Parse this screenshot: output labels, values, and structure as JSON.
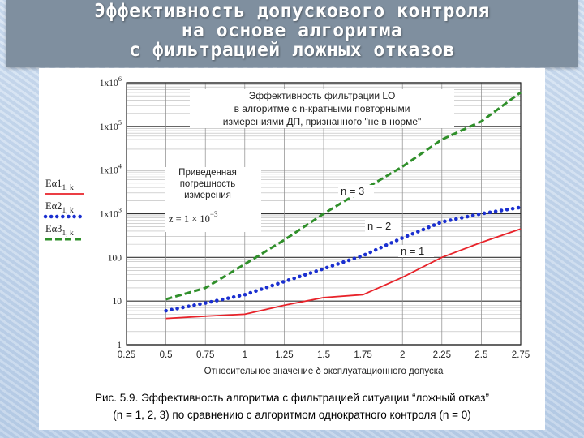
{
  "slide": {
    "title_lines": [
      "Эффективность допускового контроля",
      "на основе алгоритма",
      "с фильтрацией ложных отказов"
    ]
  },
  "caption": {
    "line1": "Рис. 5.9. Эффективность алгоритма с фильтрацией ситуации “ложный отказ”",
    "line2": "(n = 1, 2, 3) по сравнению с алгоритмом однократного контроля (n = 0)"
  },
  "chart_data": {
    "type": "line",
    "title_lines": [
      "Эффективность фильтрации LO",
      "в алгоритме с n-кратными повторными",
      "измерениями ДП, признанного \"не в норме\""
    ],
    "xlabel": "Относительное значение  δ  эксплуатационного допуска",
    "ylabel": "",
    "xlim": [
      0.25,
      2.75
    ],
    "ylim": [
      1,
      1000000
    ],
    "y_scale": "log",
    "x_ticks": [
      "0.25",
      "0.5",
      "0.75",
      "1",
      "1.25",
      "1.5",
      "1.75",
      "2",
      "2.25",
      "2.5",
      "2.75"
    ],
    "y_tick_labels": [
      "1",
      "10",
      "100",
      "1x10^3",
      "1x10^4",
      "1x10^5",
      "1x10^6"
    ],
    "grid": true,
    "legend_position": "left-outside",
    "annotation_box": {
      "lines": [
        "Приведенная",
        "погрешность",
        "измерения"
      ],
      "formula_base": "z = 1 × 10",
      "formula_exp": "−3"
    },
    "curve_labels": [
      "n = 3",
      "n = 2",
      "n = 1"
    ],
    "series": [
      {
        "name": "Eα1",
        "legend_sub": "1, k",
        "label": "n = 1",
        "color": "#e8232a",
        "style": "solid",
        "x": [
          0.5,
          0.75,
          1.0,
          1.25,
          1.5,
          1.75,
          2.0,
          2.25,
          2.5,
          2.75
        ],
        "y": [
          4,
          4.5,
          5,
          8,
          12,
          14,
          35,
          100,
          220,
          450
        ]
      },
      {
        "name": "Eα2",
        "legend_sub": "1, k",
        "label": "n = 2",
        "color": "#1a2fd0",
        "style": "dotted",
        "x": [
          0.5,
          0.75,
          1.0,
          1.25,
          1.5,
          1.75,
          2.0,
          2.25,
          2.5,
          2.75
        ],
        "y": [
          6,
          9,
          14,
          28,
          55,
          110,
          280,
          650,
          1000,
          1400
        ]
      },
      {
        "name": "Eα3",
        "legend_sub": "1, k",
        "label": "n = 3",
        "color": "#2f8f2a",
        "style": "dashed",
        "x": [
          0.5,
          0.75,
          1.0,
          1.25,
          1.5,
          1.75,
          2.0,
          2.25,
          2.5,
          2.75
        ],
        "y": [
          11,
          20,
          70,
          250,
          1000,
          3500,
          12000,
          50000,
          130000,
          600000
        ]
      }
    ]
  }
}
